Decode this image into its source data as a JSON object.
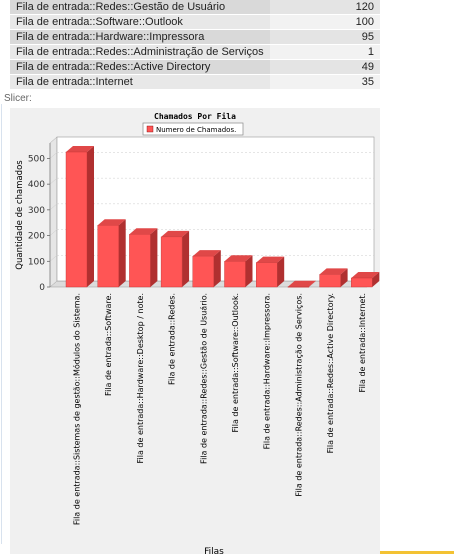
{
  "table": {
    "rows": [
      {
        "fila": "Fila de entrada::Redes::Gestão de Usuário",
        "qtd": "120"
      },
      {
        "fila": "Fila de entrada::Software::Outlook",
        "qtd": "100"
      },
      {
        "fila": "Fila de entrada::Hardware::Impressora",
        "qtd": "95"
      },
      {
        "fila": "Fila de entrada::Redes::Administração de Serviços",
        "qtd": "1"
      },
      {
        "fila": "Fila de entrada::Redes::Active Directory",
        "qtd": "49"
      },
      {
        "fila": "Fila de entrada::Internet",
        "qtd": "35"
      }
    ]
  },
  "slicer_label": "Slicer:",
  "colors": {
    "bar_front": "#ff5555",
    "bar_side": "#b03030",
    "bar_top": "#e04848",
    "accent": "#f3c233"
  },
  "chart_data": {
    "type": "bar",
    "title": "Chamados Por Fila",
    "xlabel": "Filas",
    "ylabel": "Quantidade de chamados",
    "legend": {
      "entries": [
        "Numero de Chamados."
      ],
      "placement": "top-center"
    },
    "ylim": [
      0,
      560
    ],
    "yticks": [
      0,
      100,
      200,
      300,
      400,
      500
    ],
    "grid": true,
    "categories": [
      "Fila de entrada::Sistemas de gestão::Módulos do Sistema.",
      "Fila de entrada::Software.",
      "Fila de entrada::Hardware::Desktop  / note.",
      "Fila de entrada::Redes.",
      "Fila de entrada::Redes::Gestão de Usuário.",
      "Fila de entrada::Software::Outlook.",
      "Fila de entrada::Hardware::Impressora.",
      "Fila de entrada::Redes::Administração de Serviços.",
      "Fila de entrada::Redes::Active Directory.",
      "Fila de entrada::Internet."
    ],
    "series": [
      {
        "name": "Numero de Chamados.",
        "values": [
          525,
          240,
          205,
          195,
          120,
          100,
          95,
          1,
          49,
          35
        ]
      }
    ]
  }
}
